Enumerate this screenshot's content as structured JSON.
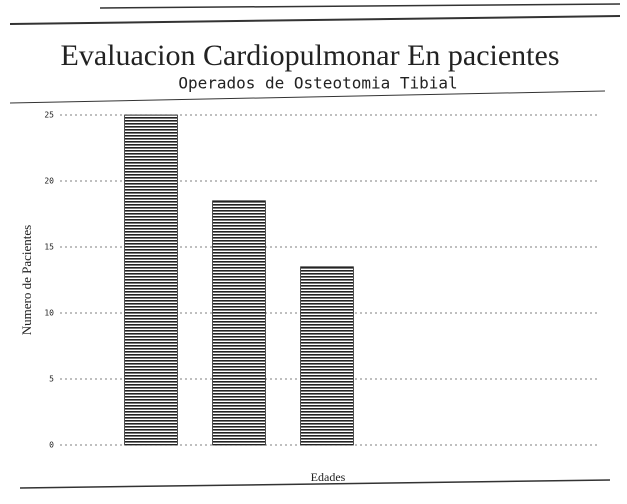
{
  "chart_data": {
    "type": "bar",
    "title": "Evaluacion Cardiopulmonar En pacientes",
    "subtitle": "Operados de Osteotomia Tibial",
    "y_label": "Numero de Pacientes",
    "x_label": "Edades",
    "categories": [
      null,
      null,
      null,
      null,
      null
    ],
    "values": [
      25,
      18.5,
      13.5,
      0,
      0
    ],
    "color": "#222222",
    "ylim": [
      0,
      25
    ],
    "yticks": [
      0,
      5,
      10,
      15,
      20,
      25
    ],
    "grid": true
  }
}
